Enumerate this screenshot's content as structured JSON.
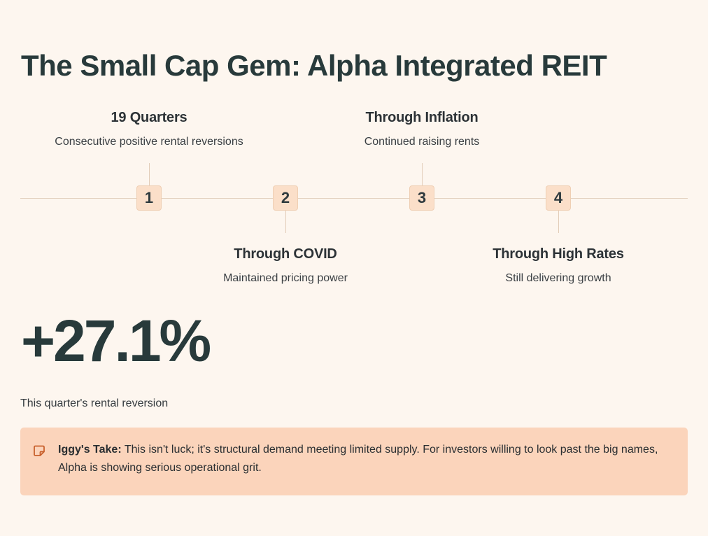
{
  "title": "The Small Cap Gem: Alpha Integrated REIT",
  "timeline": {
    "steps": [
      {
        "number": "1",
        "title": "19 Quarters",
        "description": "Consecutive positive rental reversions"
      },
      {
        "number": "2",
        "title": "Through COVID",
        "description": "Maintained pricing power"
      },
      {
        "number": "3",
        "title": "Through Inflation",
        "description": "Continued raising rents"
      },
      {
        "number": "4",
        "title": "Through High Rates",
        "description": "Still delivering growth"
      }
    ]
  },
  "stat": {
    "value": "+27.1%",
    "label": "This quarter's rental reversion"
  },
  "callout": {
    "icon": "note-icon",
    "lead": "Iggy's Take:",
    "text": "This isn't luck; it's structural demand meeting limited supply. For investors willing to look past the big names, Alpha is showing serious operational grit."
  },
  "colors": {
    "background": "#fdf6ef",
    "accent": "#fbd4bb",
    "step_fill": "#fbdfc9",
    "heading": "#283a3b"
  }
}
